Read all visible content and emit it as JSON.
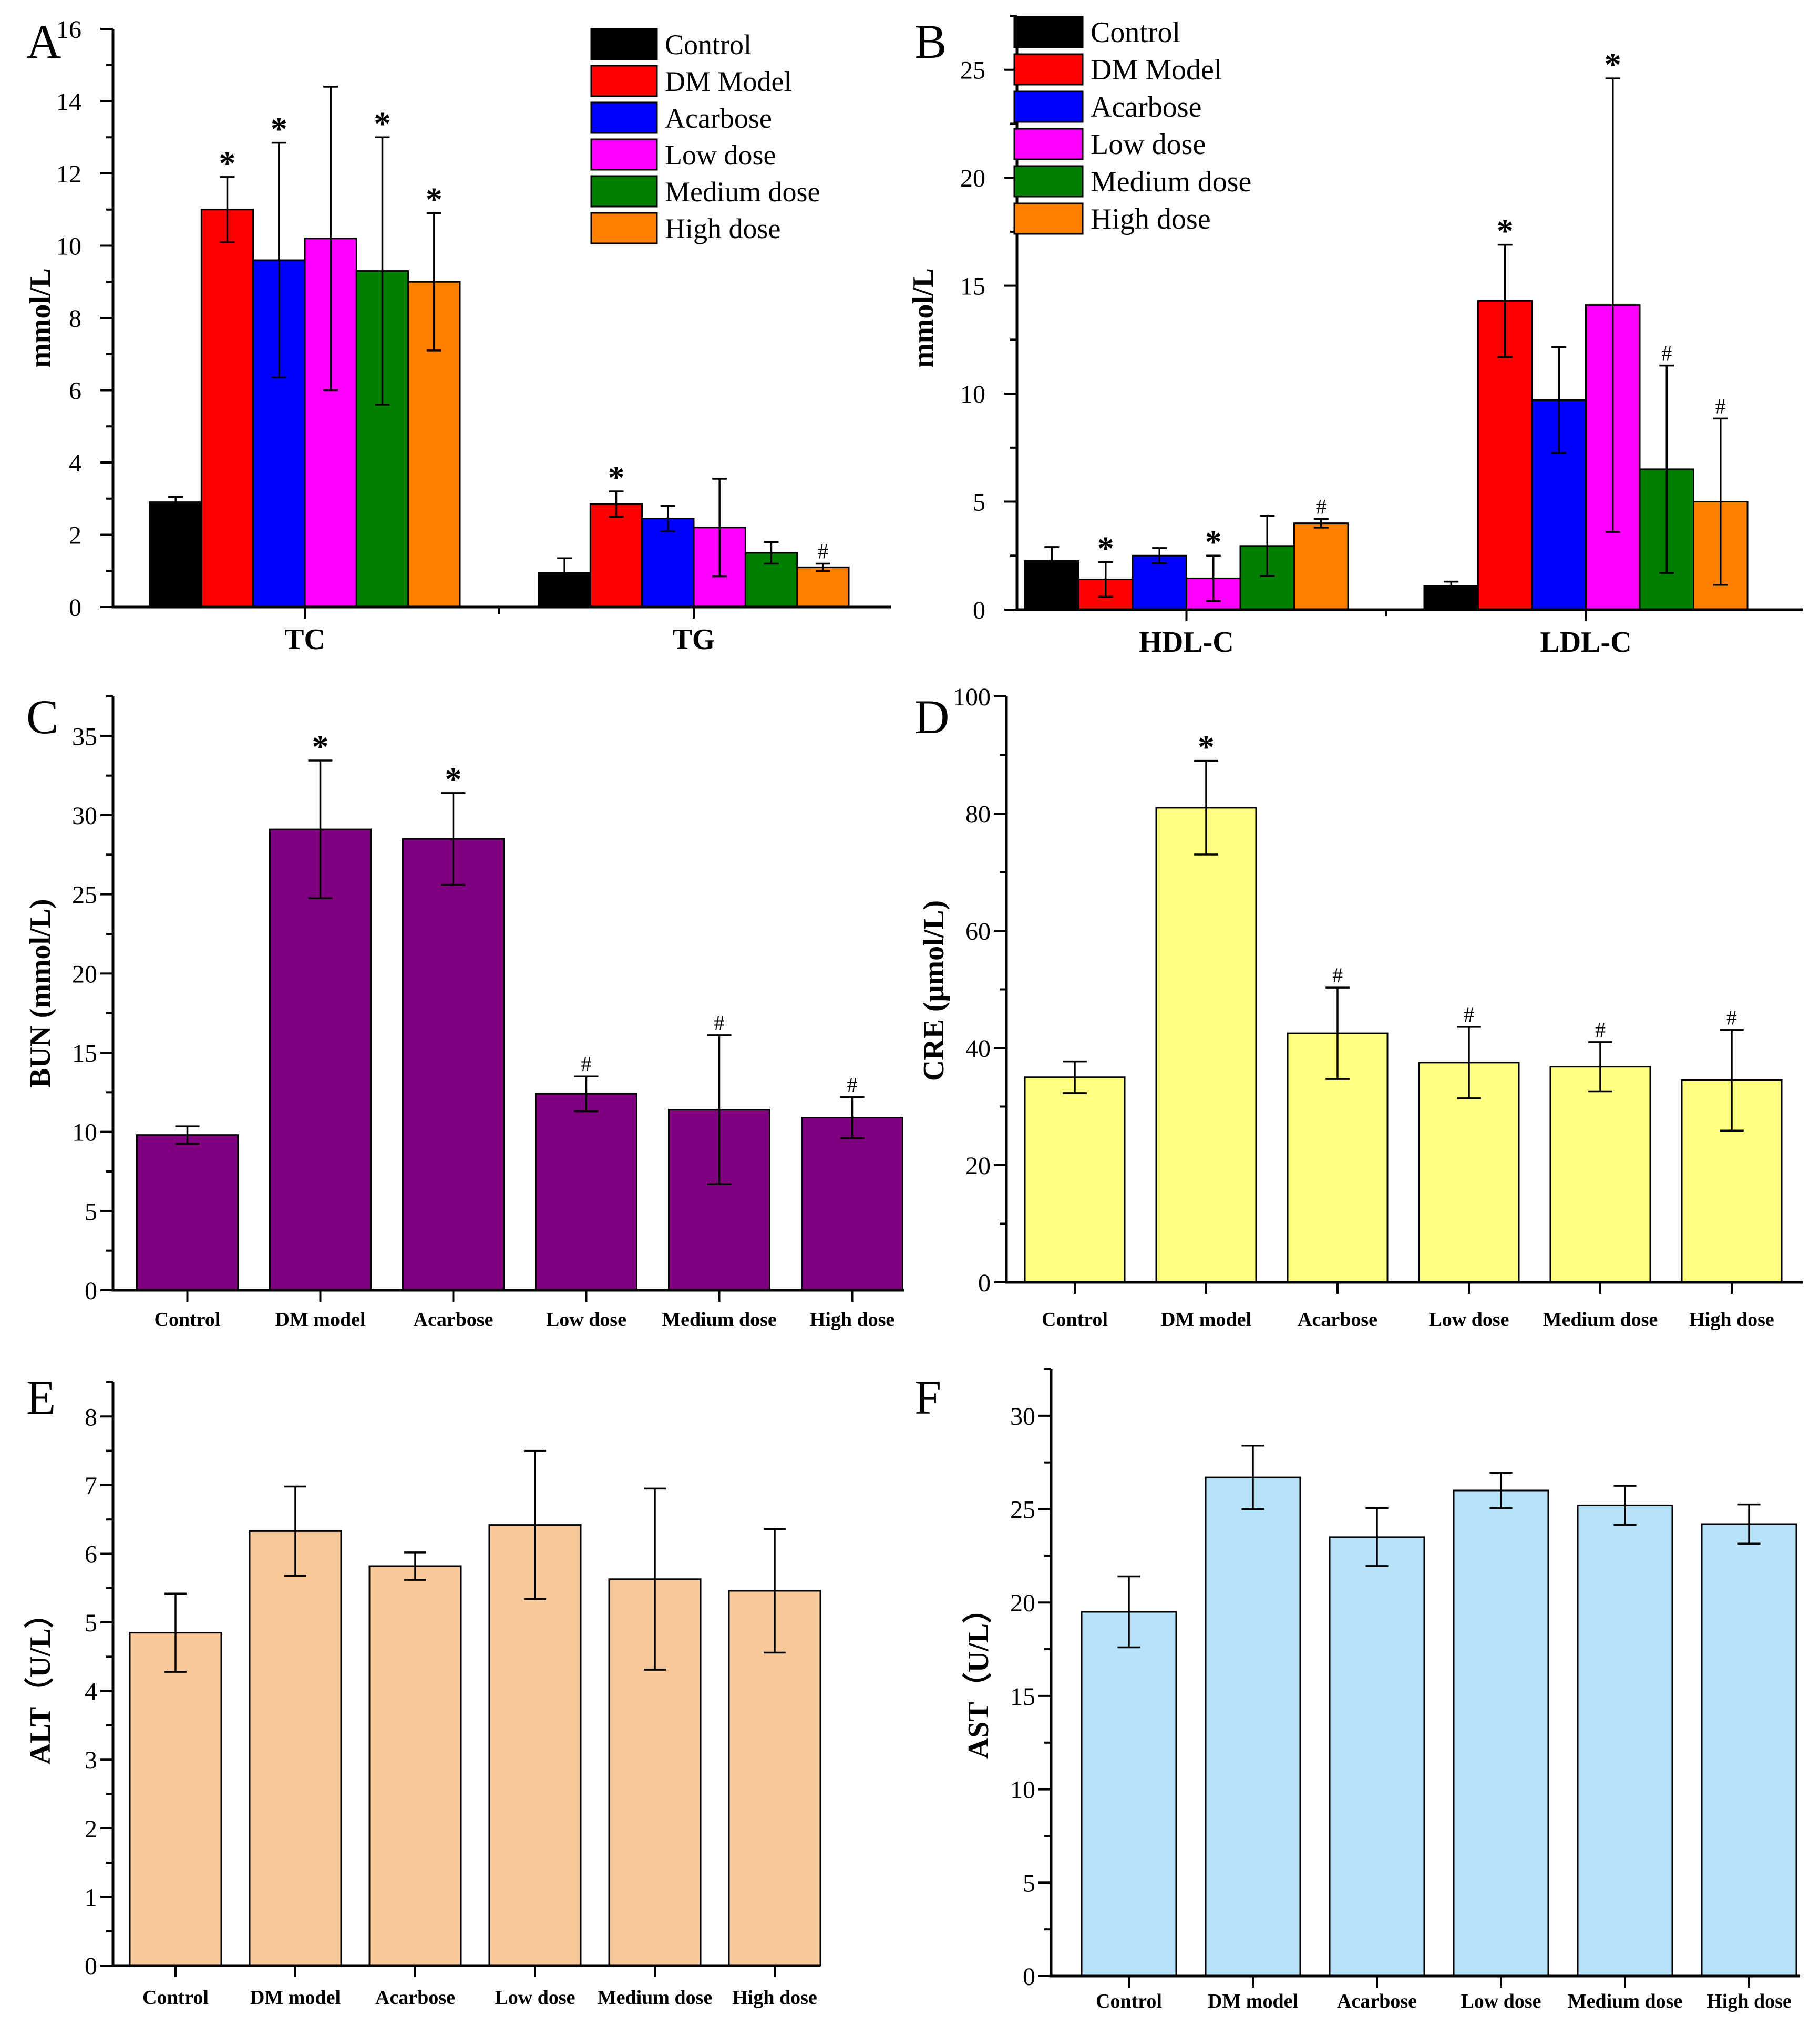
{
  "chart_data": [
    {
      "panel": "A",
      "type": "bar",
      "categories": [
        "TC",
        "TG"
      ],
      "ylabel": "mmol/L",
      "xlabel": "",
      "ylim": [
        0,
        16
      ],
      "yticks": [
        0,
        2,
        4,
        6,
        8,
        10,
        12,
        14,
        16
      ],
      "legend": "top-right",
      "series": [
        {
          "name": "Control",
          "color": "#000000",
          "values": [
            2.9,
            0.95
          ],
          "errors": [
            0.15,
            0.4
          ],
          "marks": [
            "",
            ""
          ]
        },
        {
          "name": "DM Model",
          "color": "#ff0000",
          "values": [
            11.0,
            2.85
          ],
          "errors": [
            0.9,
            0.35
          ],
          "marks": [
            "*",
            "*"
          ]
        },
        {
          "name": "Acarbose",
          "color": "#0000ff",
          "values": [
            9.6,
            2.45
          ],
          "errors": [
            3.25,
            0.35
          ],
          "marks": [
            "*",
            ""
          ]
        },
        {
          "name": "Low dose",
          "color": "#ff00ff",
          "values": [
            10.2,
            2.2
          ],
          "errors": [
            4.2,
            1.35
          ],
          "marks": [
            "",
            ""
          ]
        },
        {
          "name": "Medium dose",
          "color": "#007f00",
          "values": [
            9.3,
            1.5
          ],
          "errors": [
            3.7,
            0.3
          ],
          "marks": [
            "*",
            ""
          ]
        },
        {
          "name": "High dose",
          "color": "#ff7f00",
          "values": [
            9.0,
            1.1
          ],
          "errors": [
            1.9,
            0.1
          ],
          "marks": [
            "*",
            "#"
          ]
        }
      ]
    },
    {
      "panel": "B",
      "type": "bar",
      "categories": [
        "HDL-C",
        "LDL-C"
      ],
      "ylabel": "mmol/L",
      "xlabel": "",
      "ylim": [
        0,
        27.5
      ],
      "yticks": [
        0,
        5,
        10,
        15,
        20,
        25
      ],
      "legend": "top-left",
      "series": [
        {
          "name": "Control",
          "color": "#000000",
          "values": [
            2.25,
            1.1
          ],
          "errors": [
            0.65,
            0.2
          ],
          "marks": [
            "",
            ""
          ]
        },
        {
          "name": "DM Model",
          "color": "#ff0000",
          "values": [
            1.4,
            14.3
          ],
          "errors": [
            0.8,
            2.6
          ],
          "marks": [
            "*",
            "*"
          ]
        },
        {
          "name": "Acarbose",
          "color": "#0000ff",
          "values": [
            2.5,
            9.7
          ],
          "errors": [
            0.35,
            2.45
          ],
          "marks": [
            "",
            ""
          ]
        },
        {
          "name": "Low dose",
          "color": "#ff00ff",
          "values": [
            1.45,
            14.1
          ],
          "errors": [
            1.05,
            10.5
          ],
          "marks": [
            "*",
            "*"
          ]
        },
        {
          "name": "Medium dose",
          "color": "#007f00",
          "values": [
            2.95,
            6.5
          ],
          "errors": [
            1.4,
            4.8
          ],
          "marks": [
            "",
            "#"
          ]
        },
        {
          "name": "High dose",
          "color": "#ff7f00",
          "values": [
            4.0,
            5.0
          ],
          "errors": [
            0.2,
            3.85
          ],
          "marks": [
            "#",
            "#"
          ]
        }
      ]
    },
    {
      "panel": "C",
      "type": "bar",
      "categories": [
        "Control",
        "DM model",
        "Acarbose",
        "Low dose",
        "Medium dose",
        "High dose"
      ],
      "values": [
        9.8,
        29.1,
        28.5,
        12.4,
        11.4,
        10.9
      ],
      "errors": [
        0.55,
        4.35,
        2.9,
        1.1,
        4.7,
        1.3
      ],
      "marks": [
        "",
        "*",
        "*",
        "#",
        "#",
        "#"
      ],
      "color": "#800080",
      "ylabel": "BUN (mmol/L)",
      "xlabel": "",
      "ylim": [
        0,
        37.5
      ],
      "yticks": [
        0,
        5,
        10,
        15,
        20,
        25,
        30,
        35
      ]
    },
    {
      "panel": "D",
      "type": "bar",
      "categories": [
        "Control",
        "DM model",
        "Acarbose",
        "Low dose",
        "Medium dose",
        "High dose"
      ],
      "values": [
        35.0,
        81.0,
        42.5,
        37.5,
        36.8,
        34.5
      ],
      "errors": [
        2.7,
        8.0,
        7.8,
        6.1,
        4.2,
        8.6
      ],
      "marks": [
        "",
        "*",
        "#",
        "#",
        "#",
        "#"
      ],
      "color": "#ffff80",
      "ylabel": "CRE (μmol/L)",
      "xlabel": "",
      "ylim": [
        0,
        100
      ],
      "yticks": [
        0,
        20,
        40,
        60,
        80,
        100
      ]
    },
    {
      "panel": "E",
      "type": "bar",
      "categories": [
        "Control",
        "DM model",
        "Acarbose",
        "Low dose",
        "Medium dose",
        "High dose"
      ],
      "values": [
        4.85,
        6.33,
        5.82,
        6.42,
        5.63,
        5.46
      ],
      "errors": [
        0.57,
        0.65,
        0.2,
        1.08,
        1.32,
        0.9
      ],
      "marks": [
        "",
        "",
        "",
        "",
        "",
        ""
      ],
      "color": "#f9c89b",
      "ylabel": "ALT（U/L）",
      "xlabel": "",
      "ylim": [
        0,
        8.5
      ],
      "yticks": [
        0,
        1,
        2,
        3,
        4,
        5,
        6,
        7,
        8
      ]
    },
    {
      "panel": "F",
      "type": "bar",
      "categories": [
        "Control",
        "DM model",
        "Acarbose",
        "Low dose",
        "Medium dose",
        "High dose"
      ],
      "values": [
        19.5,
        26.7,
        23.5,
        26.0,
        25.2,
        24.2
      ],
      "errors": [
        1.9,
        1.7,
        1.55,
        0.95,
        1.05,
        1.05
      ],
      "marks": [
        "",
        "",
        "",
        "",
        "",
        ""
      ],
      "color": "#b7e3fa",
      "ylabel": "AST（U/L）",
      "xlabel": "",
      "ylim": [
        0,
        32.5
      ],
      "yticks": [
        0,
        5,
        10,
        15,
        20,
        25,
        30
      ]
    }
  ]
}
